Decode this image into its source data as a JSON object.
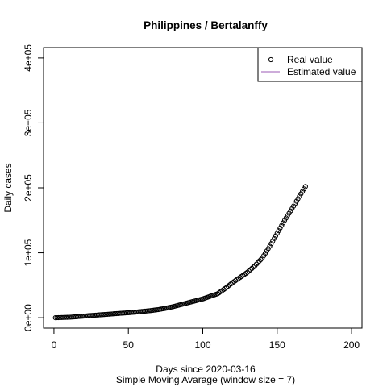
{
  "chart_data": {
    "type": "scatter",
    "title": "Philippines / Bertalanffy",
    "xlabel": "Days since 2020-03-16",
    "sublabel": "Simple Moving Avarage (window size = 7)",
    "ylabel": "Daily cases",
    "xlim": [
      -7,
      207
    ],
    "ylim": [
      -16000,
      416000
    ],
    "xticks": [
      0,
      50,
      100,
      150,
      200
    ],
    "xtick_labels": [
      "0",
      "50",
      "100",
      "150",
      "200"
    ],
    "yticks": [
      0,
      100000,
      200000,
      300000,
      400000
    ],
    "ytick_labels": [
      "0e+00",
      "1e+05",
      "2e+05",
      "3e+05",
      "4e+05"
    ],
    "legend": {
      "position": "top-right",
      "items": [
        {
          "label": "Real value",
          "kind": "point"
        },
        {
          "label": "Estimated value",
          "kind": "line",
          "color": "#9b59b6"
        }
      ]
    },
    "series": [
      {
        "name": "Real value",
        "marker": "circle-open",
        "x": [
          1,
          5,
          10,
          15,
          20,
          25,
          30,
          35,
          40,
          45,
          50,
          55,
          60,
          65,
          70,
          75,
          80,
          85,
          90,
          95,
          100,
          105,
          110,
          115,
          120,
          125,
          130,
          135,
          140,
          145,
          150,
          155,
          160,
          165,
          169
        ],
        "y": [
          0,
          300,
          700,
          1500,
          2500,
          3400,
          4300,
          5100,
          6000,
          6900,
          7700,
          8700,
          9800,
          11000,
          12500,
          14500,
          17000,
          20000,
          23000,
          26000,
          29000,
          33000,
          37000,
          45000,
          54000,
          62000,
          70000,
          80000,
          92000,
          110000,
          130000,
          150000,
          168000,
          187000,
          202000
        ]
      }
    ]
  }
}
